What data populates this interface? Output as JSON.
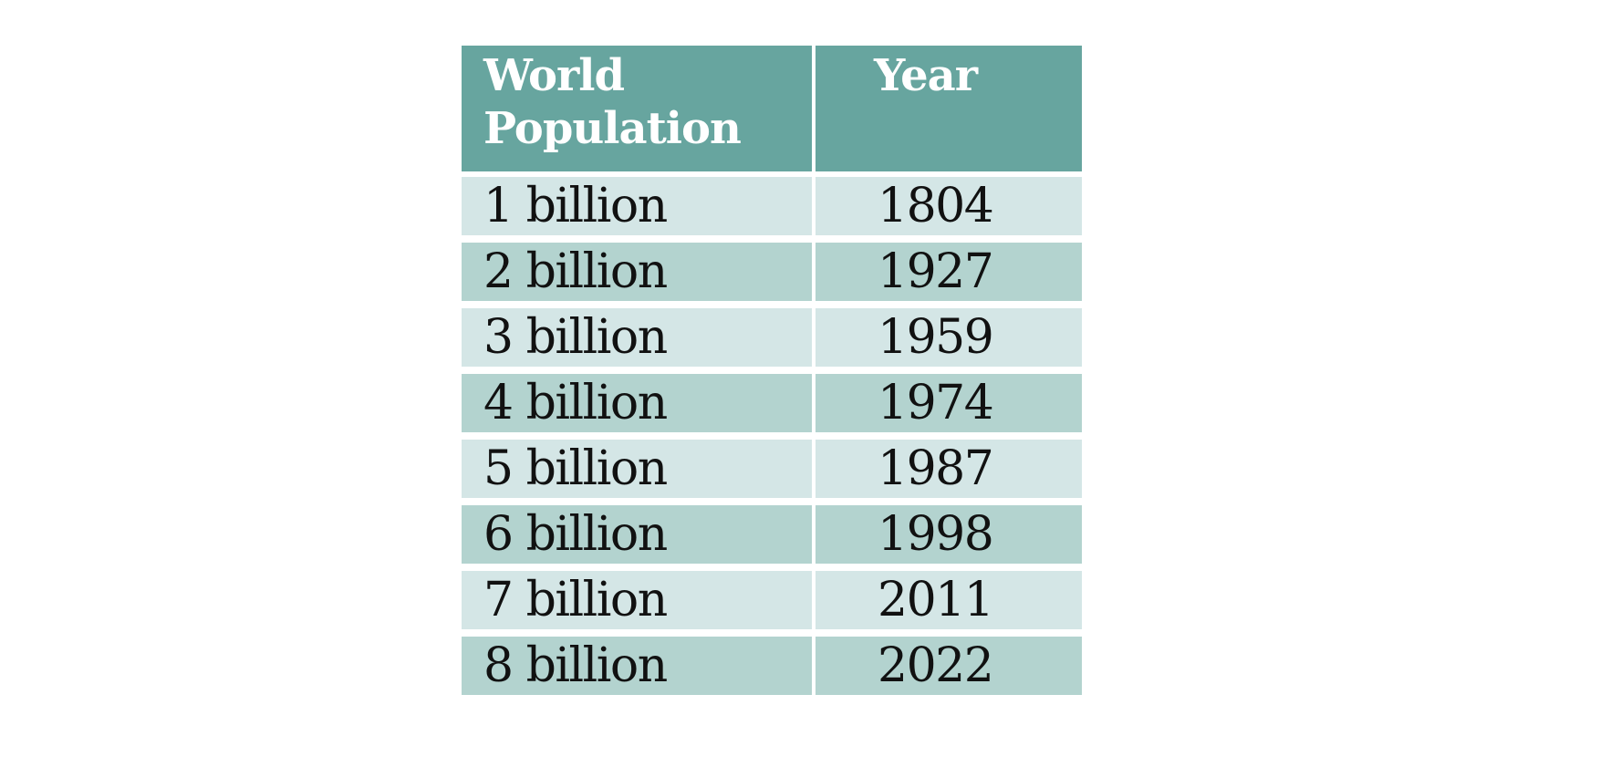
{
  "chart_data": {
    "type": "table",
    "columns": [
      "World Population",
      "Year"
    ],
    "rows": [
      [
        "1 billion",
        "1804"
      ],
      [
        "2 billion",
        "1927"
      ],
      [
        "3 billion",
        "1959"
      ],
      [
        "4 billion",
        "1974"
      ],
      [
        "5 billion",
        "1987"
      ],
      [
        "6 billion",
        "1998"
      ],
      [
        "7 billion",
        "2011"
      ],
      [
        "8 billion",
        "2022"
      ]
    ]
  },
  "colors": {
    "header_background": "#67a59f",
    "header_text": "#ffffff",
    "row_light": "#d4e6e6",
    "row_dark": "#b3d3cf",
    "cell_text": "#111111"
  }
}
